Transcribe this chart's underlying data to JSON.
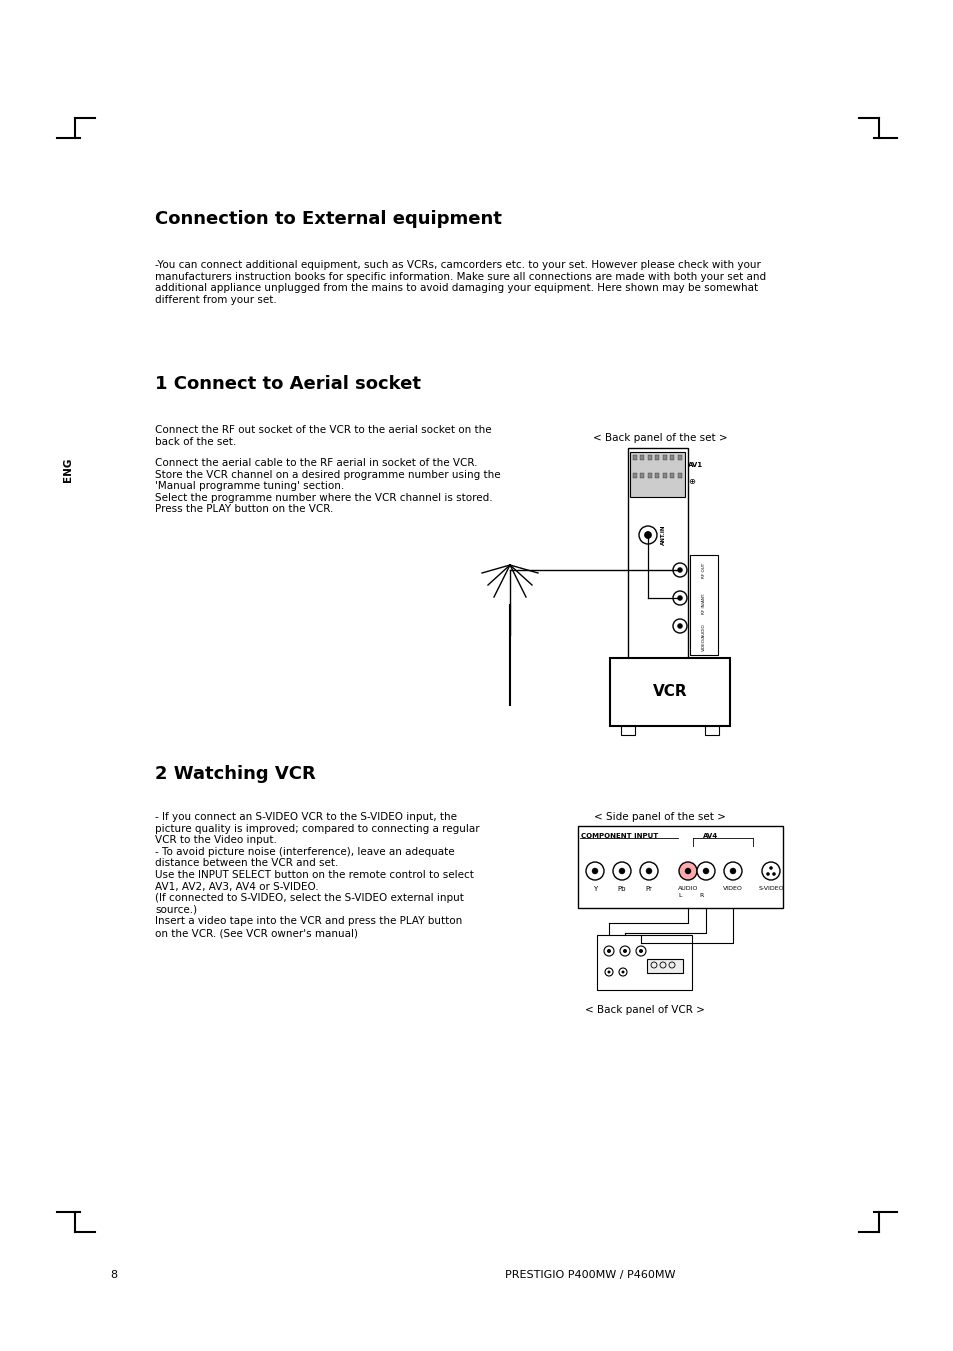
{
  "bg_color": "#ffffff",
  "title": "Connection to External equipment",
  "eng_label": "ENG",
  "intro_text": "-You can connect additional equipment, such as VCRs, camcorders etc. to your set. However please check with your\nmanufacturers instruction books for specific information. Make sure all connections are made with both your set and\nadditional appliance unplugged from the mains to avoid damaging your equipment. Here shown may be somewhat\ndifferent from your set.",
  "section1_title": "1 Connect to Aerial socket",
  "section1_text1": "Connect the RF out socket of the VCR to the aerial socket on the\nback of the set.",
  "section1_text2": "Connect the aerial cable to the RF aerial in socket of the VCR.\nStore the VCR channel on a desired programme number using the\n'Manual programme tuning' section.\nSelect the programme number where the VCR channel is stored.\nPress the PLAY button on the VCR.",
  "back_panel_label": "< Back panel of the set >",
  "vcr_label": "VCR",
  "section2_title": "2 Watching VCR",
  "section2_text": "- If you connect an S-VIDEO VCR to the S-VIDEO input, the\npicture quality is improved; compared to connecting a regular\nVCR to the Video input.\n- To avoid picture noise (interference), leave an adequate\ndistance between the VCR and set.\nUse the INPUT SELECT button on the remote control to select\nAV1, AV2, AV3, AV4 or S-VIDEO.\n(If connected to S-VIDEO, select the S-VIDEO external input\nsource.)\nInsert a video tape into the VCR and press the PLAY button\non the VCR. (See VCR owner's manual)",
  "side_panel_label": "< Side panel of the set >",
  "back_vcr_label": "< Back panel of VCR >",
  "page_number": "8",
  "footer_text": "PRESTIGIO P400MW / P460MW",
  "text_color": "#000000",
  "line_color": "#000000"
}
